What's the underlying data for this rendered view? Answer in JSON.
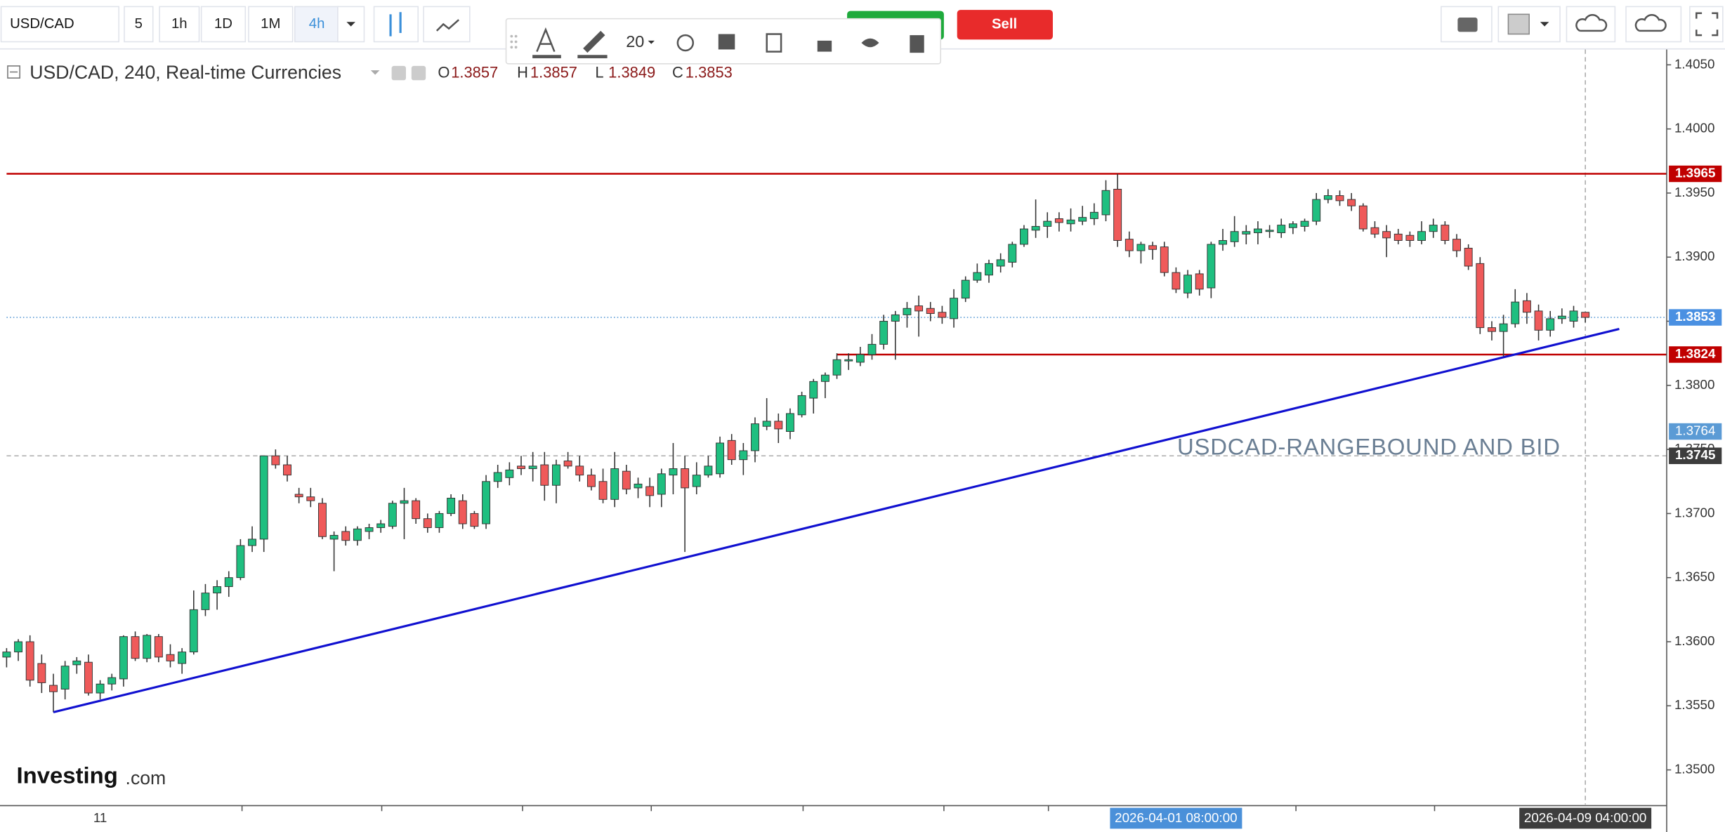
{
  "toolbar": {
    "symbol": "USD/CAD",
    "intervals": [
      "5",
      "1h",
      "1D",
      "1M",
      "4h"
    ],
    "active_interval_index": 4,
    "sell": "Sell"
  },
  "drawing_toolbar": {
    "font_size": "20"
  },
  "legend": {
    "title": "USD/CAD, 240, Real-time Currencies",
    "ohlc": [
      {
        "label": "O",
        "value": 1.3857
      },
      {
        "label": "H",
        "value": 1.3857
      },
      {
        "label": "L",
        "value": 1.3849
      },
      {
        "label": "C",
        "value": 1.3853
      }
    ]
  },
  "logo": {
    "name": "Investing",
    "suffix": ".com"
  },
  "chart_data": {
    "type": "candlestick",
    "categories": [
      null,
      null,
      null,
      null,
      null,
      null,
      null,
      null,
      "11",
      null,
      null,
      null,
      null,
      null,
      null,
      null,
      null,
      null,
      null,
      null,
      null,
      null,
      null,
      null,
      null,
      null,
      null,
      null,
      null,
      null,
      null,
      null,
      null,
      null,
      null,
      null,
      null,
      null,
      null,
      null,
      null,
      null,
      null,
      null,
      null,
      null,
      null,
      null,
      null,
      null,
      null,
      null,
      null,
      null,
      null,
      null,
      null,
      null,
      null,
      null,
      null,
      null,
      null,
      null,
      null,
      null,
      null,
      null,
      null,
      null,
      null,
      null,
      null,
      null,
      null,
      null,
      null,
      null,
      null,
      null,
      null,
      null,
      null,
      null,
      null,
      null,
      null,
      null,
      null,
      null,
      null,
      null,
      null,
      null,
      null,
      null,
      null,
      null,
      null,
      null,
      "2026-04-01 08:00:00",
      null,
      null,
      null,
      null,
      null,
      null,
      null,
      null,
      null,
      null,
      null,
      null,
      null,
      null,
      null,
      null,
      null,
      null,
      null,
      null,
      null,
      null,
      null,
      null,
      null,
      null,
      null,
      null,
      null,
      null,
      null,
      null,
      null,
      null,
      "2026-04-09 04:00:00"
    ],
    "open": [
      1.3588,
      1.3592,
      1.36,
      1.3583,
      1.3566,
      1.3563,
      1.3582,
      1.3584,
      1.356,
      1.3567,
      1.3571,
      1.3604,
      1.3587,
      1.3604,
      1.359,
      1.3583,
      1.3592,
      1.3625,
      1.3638,
      1.3643,
      1.365,
      1.3675,
      1.368,
      1.3745,
      1.3738,
      1.3715,
      1.3713,
      1.3708,
      1.368,
      1.3686,
      1.3679,
      1.3686,
      1.3689,
      1.369,
      1.3708,
      1.371,
      1.3696,
      1.3689,
      1.37,
      1.371,
      1.37,
      1.3692,
      1.3725,
      1.3728,
      1.3737,
      1.3735,
      1.3738,
      1.3722,
      1.3741,
      1.3737,
      1.373,
      1.3725,
      1.3711,
      1.3733,
      1.372,
      1.3721,
      1.3715,
      1.373,
      1.3735,
      1.3721,
      1.373,
      1.3731,
      1.3757,
      1.3742,
      1.3749,
      1.3768,
      1.3772,
      1.3764,
      1.3777,
      1.379,
      1.3803,
      1.3808,
      1.3819,
      1.3818,
      1.3824,
      1.3832,
      1.385,
      1.3855,
      1.3862,
      1.386,
      1.3857,
      1.3852,
      1.3868,
      1.3882,
      1.3886,
      1.3893,
      1.3896,
      1.391,
      1.3921,
      1.3924,
      1.393,
      1.3926,
      1.3928,
      1.393,
      1.3933,
      1.3953,
      1.3914,
      1.3905,
      1.3909,
      1.3908,
      1.3888,
      1.3872,
      1.3887,
      1.3876,
      1.391,
      1.3912,
      1.3918,
      1.3919,
      1.392,
      1.3919,
      1.3923,
      1.3924,
      1.3928,
      1.3945,
      1.3948,
      1.3945,
      1.394,
      1.3923,
      1.392,
      1.3918,
      1.3917,
      1.3913,
      1.392,
      1.3925,
      1.3914,
      1.3907,
      1.3895,
      1.3845,
      1.3842,
      1.3848,
      1.3866,
      1.3858,
      1.3843,
      1.3852,
      1.385,
      1.3857
    ],
    "high": [
      1.3595,
      1.3602,
      1.3605,
      1.359,
      1.3575,
      1.3585,
      1.3588,
      1.359,
      1.357,
      1.3575,
      1.3605,
      1.3608,
      1.3606,
      1.3606,
      1.3598,
      1.3595,
      1.364,
      1.3645,
      1.3648,
      1.3655,
      1.368,
      1.369,
      1.3745,
      1.375,
      1.3745,
      1.372,
      1.372,
      1.3712,
      1.3686,
      1.369,
      1.369,
      1.3692,
      1.3695,
      1.371,
      1.372,
      1.3712,
      1.37,
      1.3702,
      1.3715,
      1.3715,
      1.3702,
      1.373,
      1.3738,
      1.374,
      1.3745,
      1.3748,
      1.3748,
      1.3742,
      1.3748,
      1.3745,
      1.3735,
      1.3735,
      1.3748,
      1.3738,
      1.3728,
      1.3728,
      1.3735,
      1.3755,
      1.3745,
      1.374,
      1.3745,
      1.376,
      1.3762,
      1.3755,
      1.3775,
      1.379,
      1.3778,
      1.3782,
      1.3795,
      1.3805,
      1.381,
      1.3825,
      1.3825,
      1.383,
      1.384,
      1.3855,
      1.3858,
      1.3865,
      1.387,
      1.3865,
      1.3862,
      1.3875,
      1.3885,
      1.3895,
      1.3898,
      1.3903,
      1.3912,
      1.3925,
      1.3945,
      1.3935,
      1.3935,
      1.3938,
      1.394,
      1.3942,
      1.396,
      1.3965,
      1.392,
      1.3912,
      1.3912,
      1.3912,
      1.3892,
      1.389,
      1.389,
      1.3912,
      1.3922,
      1.3932,
      1.3925,
      1.3928,
      1.3925,
      1.393,
      1.3928,
      1.393,
      1.395,
      1.3953,
      1.3952,
      1.395,
      1.3942,
      1.3928,
      1.3925,
      1.3922,
      1.392,
      1.3928,
      1.393,
      1.3928,
      1.3918,
      1.391,
      1.39,
      1.385,
      1.3855,
      1.3875,
      1.3872,
      1.3863,
      1.3858,
      1.386,
      1.3862,
      1.3857
    ],
    "low": [
      1.358,
      1.3585,
      1.3565,
      1.356,
      1.3545,
      1.3555,
      1.3575,
      1.3558,
      1.3555,
      1.3562,
      1.3565,
      1.3585,
      1.3584,
      1.3584,
      1.358,
      1.3575,
      1.359,
      1.362,
      1.3625,
      1.3635,
      1.3648,
      1.367,
      1.367,
      1.3735,
      1.3725,
      1.3708,
      1.3705,
      1.368,
      1.3655,
      1.3675,
      1.3675,
      1.368,
      1.3685,
      1.3688,
      1.368,
      1.3692,
      1.3685,
      1.3685,
      1.3698,
      1.3688,
      1.3688,
      1.3688,
      1.372,
      1.3722,
      1.373,
      1.3725,
      1.371,
      1.3708,
      1.3735,
      1.3725,
      1.3718,
      1.3708,
      1.3705,
      1.3715,
      1.3712,
      1.3705,
      1.3705,
      1.3715,
      1.367,
      1.3715,
      1.3728,
      1.3728,
      1.3738,
      1.373,
      1.374,
      1.3765,
      1.3755,
      1.3758,
      1.3775,
      1.3778,
      1.379,
      1.3805,
      1.3812,
      1.3815,
      1.382,
      1.3828,
      1.382,
      1.3845,
      1.3838,
      1.385,
      1.3848,
      1.3845,
      1.3865,
      1.388,
      1.388,
      1.3888,
      1.3892,
      1.3908,
      1.3915,
      1.3915,
      1.392,
      1.392,
      1.3925,
      1.3925,
      1.3928,
      1.3908,
      1.39,
      1.3895,
      1.3898,
      1.3885,
      1.3872,
      1.3868,
      1.387,
      1.3868,
      1.3905,
      1.3908,
      1.391,
      1.391,
      1.3915,
      1.3915,
      1.3918,
      1.392,
      1.3925,
      1.3942,
      1.394,
      1.3936,
      1.392,
      1.3915,
      1.39,
      1.391,
      1.3908,
      1.391,
      1.3915,
      1.391,
      1.39,
      1.389,
      1.384,
      1.3835,
      1.3822,
      1.3845,
      1.3848,
      1.3835,
      1.3838,
      1.3848,
      1.3845,
      1.3849
    ],
    "close": [
      1.3592,
      1.36,
      1.357,
      1.3568,
      1.3561,
      1.3581,
      1.3585,
      1.356,
      1.3567,
      1.3572,
      1.3604,
      1.3587,
      1.3605,
      1.3588,
      1.3585,
      1.3592,
      1.3625,
      1.3638,
      1.3643,
      1.365,
      1.3675,
      1.368,
      1.3745,
      1.3738,
      1.373,
      1.3713,
      1.371,
      1.3682,
      1.3683,
      1.3679,
      1.3688,
      1.3689,
      1.3692,
      1.3708,
      1.371,
      1.3696,
      1.3689,
      1.37,
      1.3712,
      1.3692,
      1.369,
      1.3725,
      1.3732,
      1.3734,
      1.3735,
      1.3737,
      1.3722,
      1.3738,
      1.3737,
      1.373,
      1.3721,
      1.3711,
      1.3735,
      1.3719,
      1.3723,
      1.3714,
      1.3731,
      1.3735,
      1.372,
      1.373,
      1.3737,
      1.3755,
      1.3742,
      1.3749,
      1.377,
      1.3772,
      1.3766,
      1.3778,
      1.3792,
      1.3803,
      1.3808,
      1.382,
      1.382,
      1.3824,
      1.3832,
      1.385,
      1.3855,
      1.386,
      1.3858,
      1.3856,
      1.3853,
      1.3868,
      1.3882,
      1.3888,
      1.3895,
      1.3898,
      1.391,
      1.3922,
      1.3924,
      1.3928,
      1.3927,
      1.3929,
      1.3931,
      1.3935,
      1.3952,
      1.3913,
      1.3905,
      1.391,
      1.3906,
      1.3888,
      1.3875,
      1.3886,
      1.3875,
      1.391,
      1.3913,
      1.392,
      1.392,
      1.3922,
      1.3921,
      1.3925,
      1.3926,
      1.3928,
      1.3945,
      1.3948,
      1.3944,
      1.394,
      1.3922,
      1.3918,
      1.3915,
      1.3913,
      1.3913,
      1.392,
      1.3925,
      1.3913,
      1.3905,
      1.3893,
      1.3845,
      1.3842,
      1.3848,
      1.3865,
      1.3857,
      1.3843,
      1.3852,
      1.3854,
      1.3858,
      1.3853
    ],
    "up_color": "#1fbf80",
    "down_color": "#ef5a5a",
    "wick_color": "#333333",
    "ylim": [
      1.3473,
      1.4062
    ],
    "yticks": [
      {
        "value": 1.35,
        "label": "1.3500"
      },
      {
        "value": 1.355,
        "label": "1.3550"
      },
      {
        "value": 1.36,
        "label": "1.3600"
      },
      {
        "value": 1.365,
        "label": "1.3650"
      },
      {
        "value": 1.37,
        "label": "1.3700"
      },
      {
        "value": 1.375,
        "label": "1.3750"
      },
      {
        "value": 1.38,
        "label": "1.3800"
      },
      {
        "value": 1.385,
        "label": "1.3850"
      },
      {
        "value": 1.39,
        "label": "1.3900"
      },
      {
        "value": 1.395,
        "label": "1.3950"
      },
      {
        "value": 1.4,
        "label": "1.4000"
      },
      {
        "value": 1.405,
        "label": "1.4050"
      }
    ],
    "grid": false,
    "price_lines": [
      {
        "value": 1.3965,
        "color": "#c00000",
        "style": "solid",
        "start": 0,
        "label_color": "#c00000"
      },
      {
        "value": 1.3824,
        "color": "#c00000",
        "style": "solid",
        "start": 71,
        "label_color": "#c00000"
      },
      {
        "value": 1.3853,
        "color": "#5b9bd5",
        "style": "dotted",
        "start": 0,
        "label_color": "#4a90e2"
      },
      {
        "value": 1.3745,
        "color": "#aaaaaa",
        "style": "dashed",
        "start": 0,
        "label_color": "#3d3d3d"
      }
    ],
    "price_labels": [
      {
        "value": 1.3764,
        "color": "#5b9bd5"
      }
    ],
    "crosshair_index": 135,
    "x_label_boxes": [
      {
        "index": 100,
        "color": "#4a90d9"
      },
      {
        "index": 135,
        "color": "#3d3d3d"
      }
    ],
    "trendline": {
      "color": "#1010d0",
      "start": [
        4,
        1.3545
      ],
      "end": [
        137.9,
        1.3844
      ]
    },
    "annotation": "USDCAD-RANGEBOUND AND BID",
    "annotation_color": "#6b7f94"
  }
}
